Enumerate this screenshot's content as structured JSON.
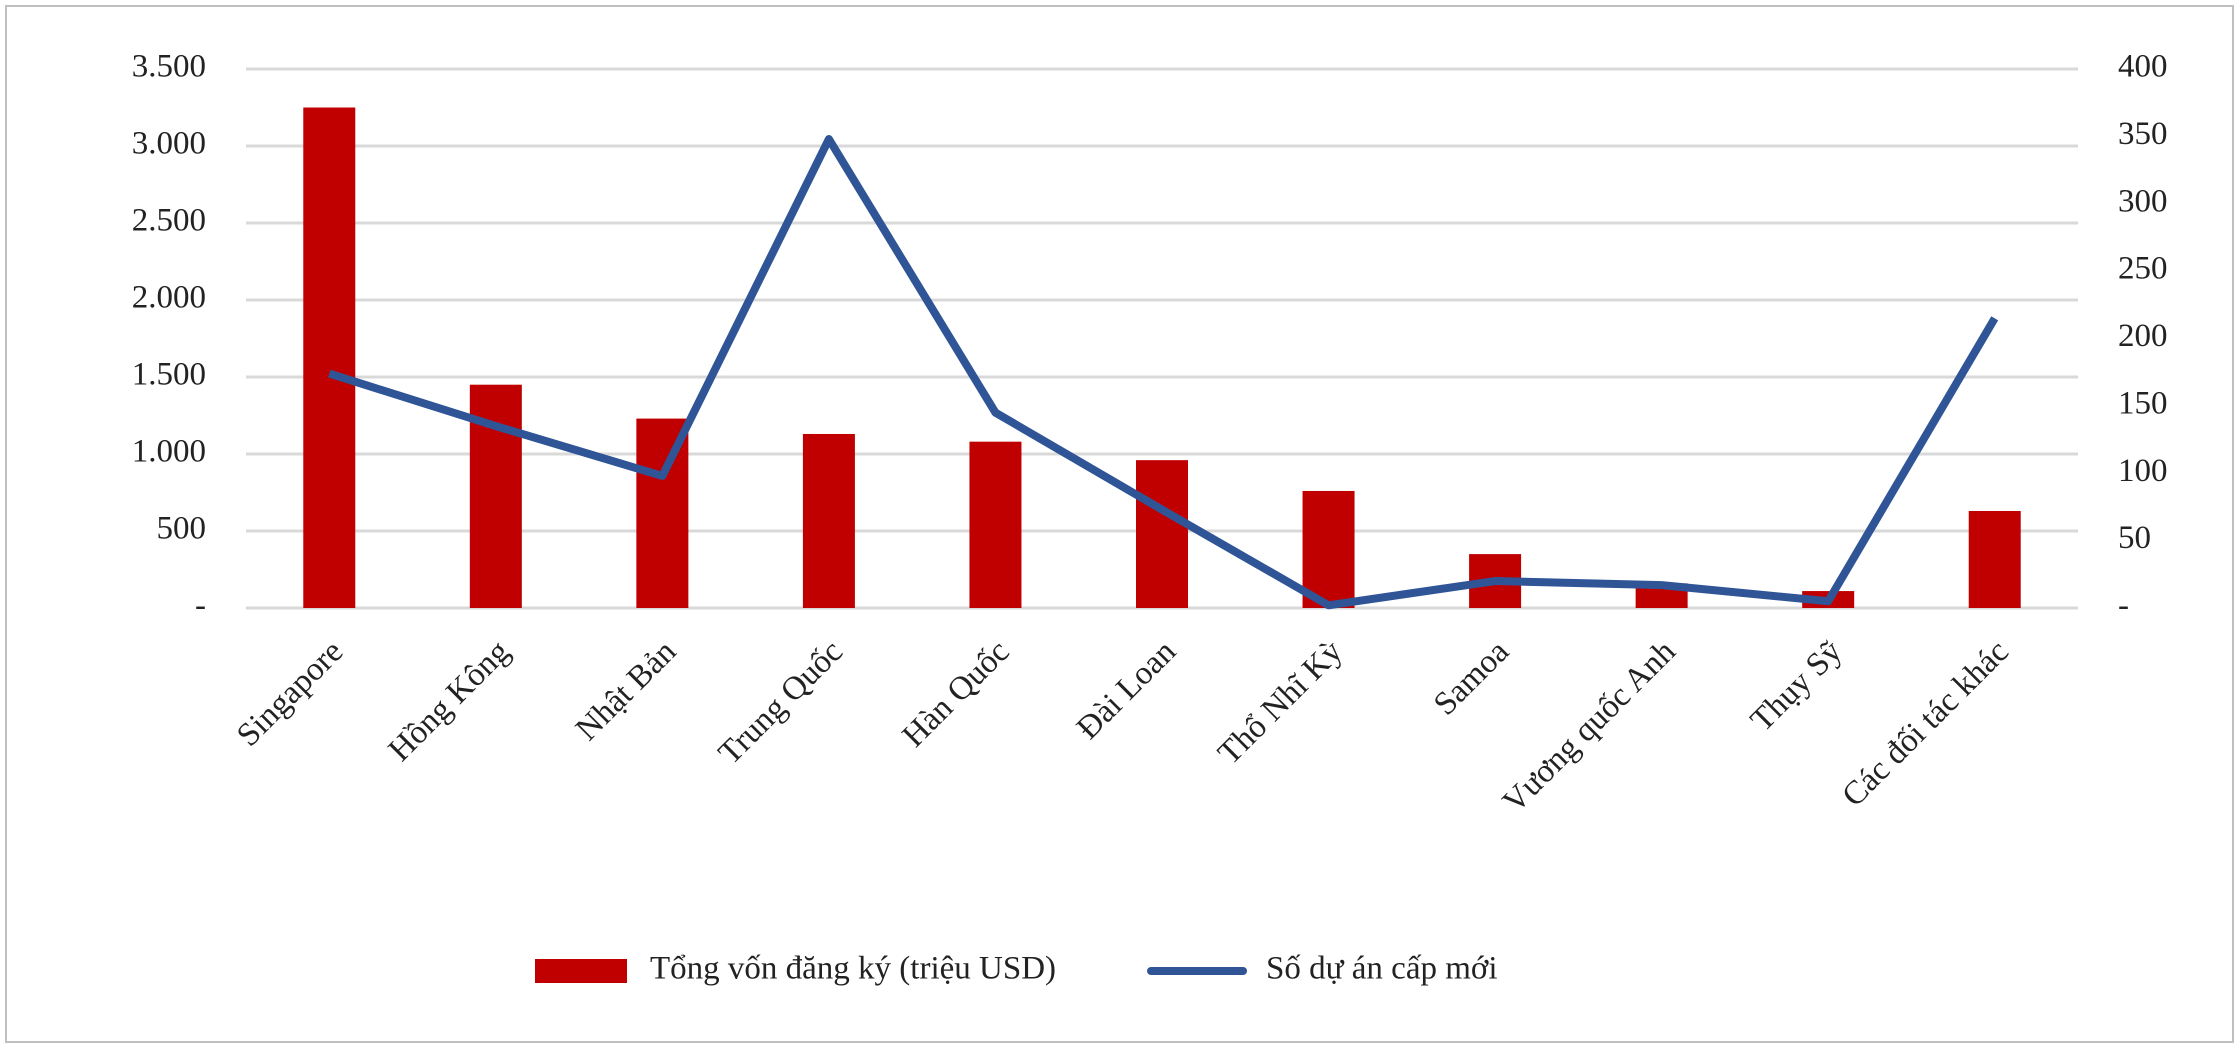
{
  "chart_data": {
    "type": "bar-line",
    "categories": [
      "Singapore",
      "Hồng Kông",
      "Nhật Bản",
      "Trung Quốc",
      "Hàn Quốc",
      "Đài Loan",
      "Thổ Nhĩ Kỳ",
      "Samoa",
      "Vương quốc Anh",
      "Thụy Sỹ",
      "Các đối tác khác"
    ],
    "series": [
      {
        "name": "Tổng vốn đăng ký (triệu  USD)",
        "type": "bar",
        "color": "#c00000",
        "values": [
          3250,
          1450,
          1230,
          1130,
          1080,
          960,
          760,
          350,
          160,
          110,
          630
        ]
      },
      {
        "name": "Số dự án cấp mới",
        "type": "line",
        "axis": "y2",
        "color": "#2f5597",
        "values": [
          174,
          135,
          98,
          348,
          145,
          73,
          2,
          20,
          17,
          5,
          215
        ]
      }
    ],
    "ylim": [
      0,
      3500
    ],
    "yticks": [
      {
        "value": 0,
        "label": "-"
      },
      500,
      {
        "value": 1000,
        "label": "1.000"
      },
      {
        "value": 1500,
        "label": "1.500"
      },
      {
        "value": 2000,
        "label": "2.000"
      },
      {
        "value": 2500,
        "label": "2.500"
      },
      {
        "value": 3000,
        "label": "3.000"
      },
      {
        "value": 3500,
        "label": "3.500"
      }
    ],
    "y2lim": [
      0,
      400
    ],
    "y2ticks": [
      {
        "value": 0,
        "label": "-"
      },
      50,
      100,
      150,
      200,
      250,
      300,
      350,
      400
    ],
    "grid": true
  }
}
